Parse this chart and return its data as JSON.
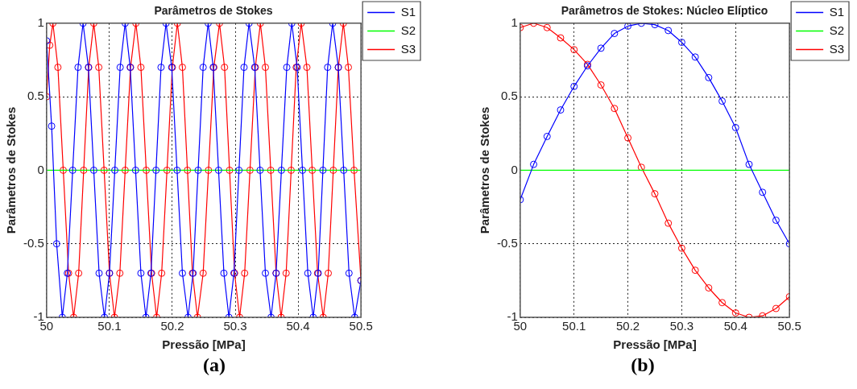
{
  "chart_data": [
    {
      "type": "line",
      "title": "Parâmetros de Stokes",
      "xlabel": "Pressão [MPa]",
      "ylabel": "Parâmetros de Stokes",
      "annotations": [
        "(a)"
      ],
      "xlim": [
        50,
        50.5
      ],
      "xticks": [
        50,
        50.1,
        50.2,
        50.3,
        50.4,
        50.5
      ],
      "ylim": [
        -1,
        1
      ],
      "yticks": [
        -1,
        -0.5,
        0,
        0.5,
        1
      ],
      "grid": true,
      "legend": "top right",
      "line_style": "solid",
      "series": [
        {
          "name": "S1",
          "color": "#0000ff",
          "marker": "circle",
          "x": [
            50,
            50.008,
            50.016,
            50.025,
            50.033,
            50.0415,
            50.05,
            50.058,
            50.0665,
            50.075,
            50.0835,
            50.092,
            50.1,
            50.1085,
            50.117,
            50.125,
            50.133,
            50.1415,
            50.15,
            50.158,
            50.166,
            50.174,
            50.182,
            50.19,
            50.199,
            50.2075,
            50.216,
            50.225,
            50.233,
            50.241,
            50.249,
            50.257,
            50.265,
            50.2735,
            50.282,
            50.29,
            50.298,
            50.306,
            50.314,
            50.322,
            50.331,
            50.3395,
            50.348,
            50.357,
            50.365,
            50.3735,
            50.382,
            50.39,
            50.3985,
            50.407,
            50.4155,
            50.424,
            50.432,
            50.4395,
            50.447,
            50.455,
            50.464,
            50.4725,
            50.481,
            50.49,
            50.5
          ],
          "values": [
            0.88,
            0.3,
            -0.5,
            -1,
            -0.7,
            0,
            0.7,
            1,
            0.7,
            0,
            -0.7,
            -1,
            -0.7,
            0,
            0.7,
            1,
            0.7,
            0,
            -0.7,
            -1,
            -0.7,
            0,
            0.7,
            1,
            0.7,
            0,
            -0.7,
            -1,
            -0.7,
            0,
            0.7,
            1,
            0.7,
            0,
            -0.7,
            -1,
            -0.7,
            0,
            0.7,
            1,
            0.7,
            0,
            -0.7,
            -1,
            -0.7,
            0,
            0.7,
            1,
            0.7,
            0,
            -0.7,
            -1,
            -0.7,
            0,
            0.7,
            1,
            0.7,
            0,
            -0.7,
            -1,
            -0.75
          ]
        },
        {
          "name": "S2",
          "color": "#00ff00",
          "marker": "none",
          "x": [
            50,
            50.5
          ],
          "values": [
            0,
            0
          ]
        },
        {
          "name": "S3",
          "color": "#ff0000",
          "marker": "circle",
          "x": [
            50,
            50.005,
            50.01,
            50.018,
            50.0265,
            50.035,
            50.043,
            50.051,
            50.059,
            50.067,
            50.075,
            50.083,
            50.0915,
            50.1,
            50.108,
            50.1165,
            50.125,
            50.1335,
            50.142,
            50.15,
            50.1585,
            50.167,
            50.175,
            50.183,
            50.1915,
            50.2,
            50.208,
            50.216,
            50.224,
            50.232,
            50.24,
            50.249,
            50.2575,
            50.266,
            50.275,
            50.283,
            50.291,
            50.299,
            50.307,
            50.315,
            50.3235,
            50.332,
            50.34,
            50.348,
            50.3565,
            50.365,
            50.373,
            50.381,
            50.389,
            50.397,
            50.405,
            50.414,
            50.4225,
            50.431,
            50.44,
            50.448,
            50.456,
            50.464,
            50.472,
            50.48,
            50.489,
            50.5
          ],
          "values": [
            0.5,
            0.85,
            1,
            0.7,
            0,
            -0.7,
            -1,
            -0.7,
            0,
            0.7,
            1,
            0.7,
            0,
            -0.7,
            -1,
            -0.7,
            0,
            0.7,
            1,
            0.7,
            0,
            -0.7,
            -1,
            -0.7,
            0,
            0.7,
            1,
            0.7,
            0,
            -0.7,
            -1,
            -0.7,
            0,
            0.7,
            1,
            0.7,
            0,
            -0.7,
            -1,
            -0.7,
            0,
            0.7,
            1,
            0.7,
            0,
            -0.7,
            -1,
            -0.7,
            0,
            0.7,
            1,
            0.7,
            0,
            -0.7,
            -1,
            -0.7,
            0,
            0.7,
            1,
            0.7,
            0,
            -0.75
          ]
        }
      ]
    },
    {
      "type": "line",
      "title": "Parâmetros de Stokes: Núcleo Elíptico",
      "xlabel": "Pressão [MPa]",
      "ylabel": "Parâmetros de Stokes",
      "annotations": [
        "(b)"
      ],
      "xlim": [
        50,
        50.5
      ],
      "xticks": [
        50,
        50.1,
        50.2,
        50.3,
        50.4,
        50.5
      ],
      "ylim": [
        -1,
        1
      ],
      "yticks": [
        -1,
        -0.5,
        0,
        0.5,
        1
      ],
      "grid": true,
      "legend": "top right",
      "line_style": "solid",
      "series": [
        {
          "name": "S1",
          "color": "#0000ff",
          "marker": "circle",
          "x": [
            50,
            50.025,
            50.05,
            50.075,
            50.1,
            50.125,
            50.15,
            50.175,
            50.2,
            50.225,
            50.25,
            50.275,
            50.3,
            50.325,
            50.35,
            50.375,
            50.4,
            50.425,
            50.45,
            50.475,
            50.5
          ],
          "values": [
            -0.2,
            0.04,
            0.23,
            0.41,
            0.57,
            0.71,
            0.83,
            0.93,
            0.98,
            1,
            0.99,
            0.95,
            0.87,
            0.77,
            0.63,
            0.47,
            0.29,
            0.04,
            -0.15,
            -0.34,
            -0.5
          ]
        },
        {
          "name": "S2",
          "color": "#00ff00",
          "marker": "none",
          "x": [
            50,
            50.5
          ],
          "values": [
            0,
            0
          ]
        },
        {
          "name": "S3",
          "color": "#ff0000",
          "marker": "circle",
          "x": [
            50,
            50.025,
            50.05,
            50.075,
            50.1,
            50.125,
            50.15,
            50.175,
            50.2,
            50.225,
            50.25,
            50.275,
            50.3,
            50.325,
            50.35,
            50.375,
            50.4,
            50.425,
            50.45,
            50.475,
            50.5
          ],
          "values": [
            0.97,
            1,
            0.97,
            0.9,
            0.82,
            0.72,
            0.58,
            0.42,
            0.22,
            0.02,
            -0.16,
            -0.36,
            -0.53,
            -0.68,
            -0.8,
            -0.9,
            -0.97,
            -1,
            -0.99,
            -0.94,
            -0.86
          ]
        }
      ]
    }
  ]
}
